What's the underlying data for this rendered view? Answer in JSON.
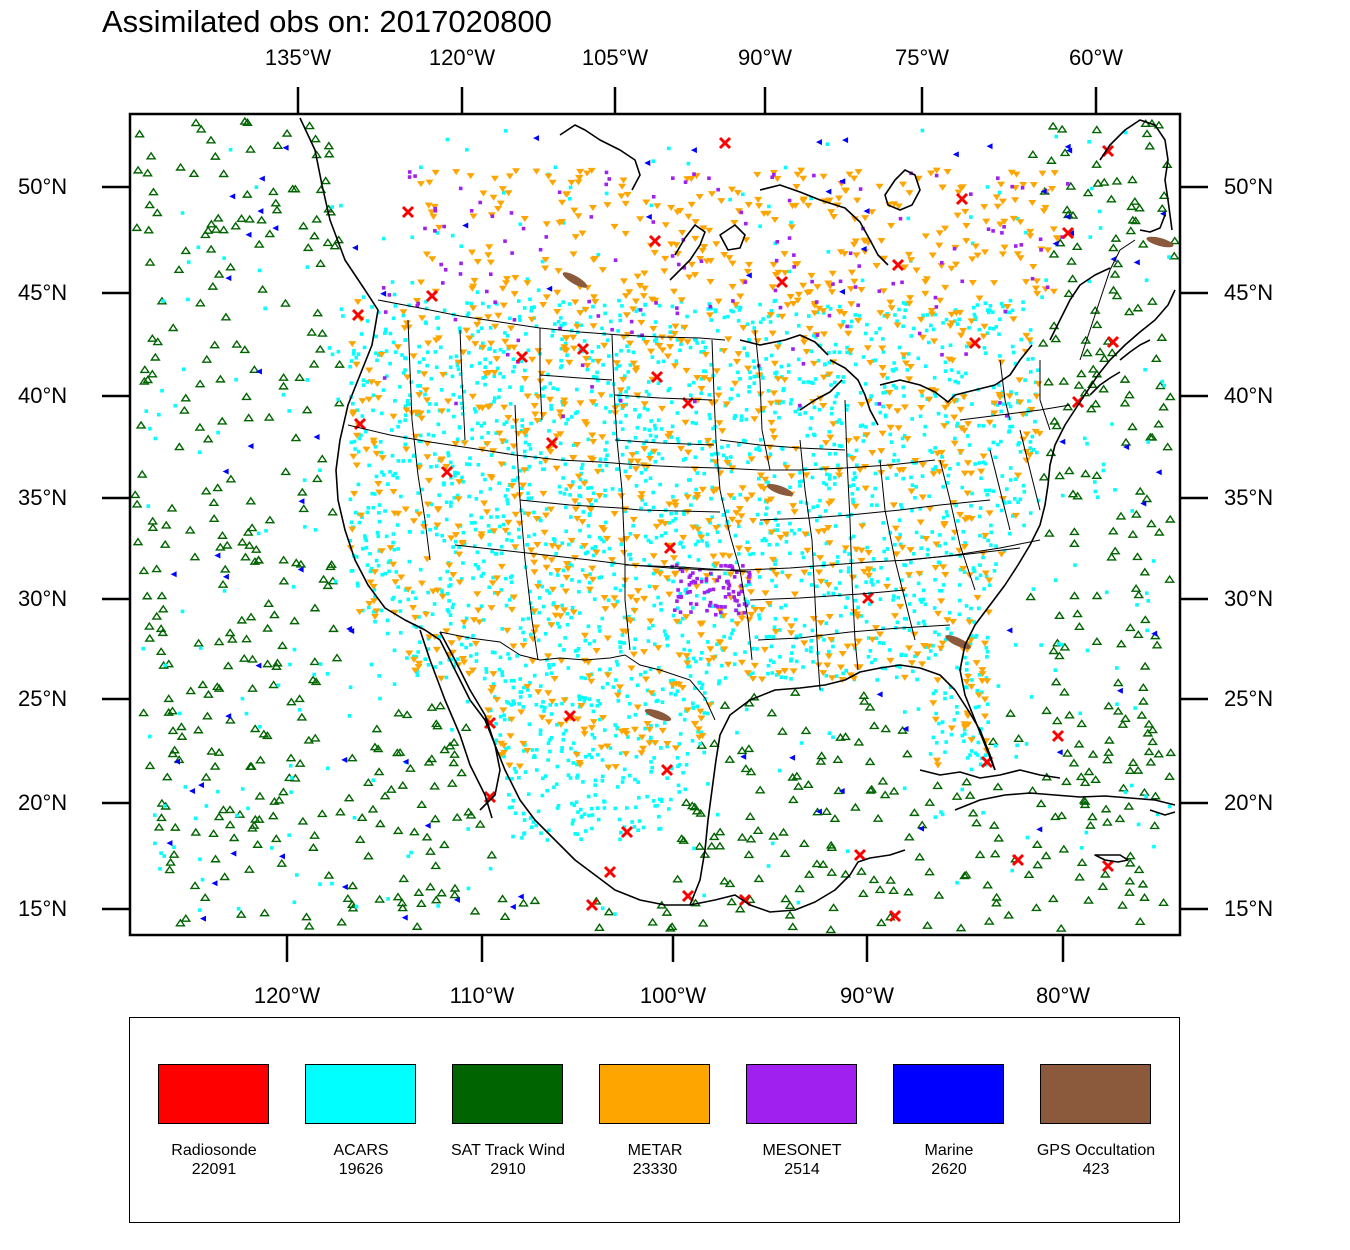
{
  "title": "Assimilated obs on: 2017020800",
  "axes": {
    "top_lon_labels": [
      "135°W",
      "120°W",
      "105°W",
      "90°W",
      "75°W",
      "60°W"
    ],
    "bottom_lon_labels": [
      "120°W",
      "110°W",
      "100°W",
      "90°W",
      "80°W"
    ],
    "lat_labels": [
      "50°N",
      "45°N",
      "40°N",
      "35°N",
      "30°N",
      "25°N",
      "20°N",
      "15°N"
    ]
  },
  "legend": [
    {
      "name": "Radiosonde",
      "count": "22091",
      "color": "#ff0000"
    },
    {
      "name": "ACARS",
      "count": "19626",
      "color": "#00ffff"
    },
    {
      "name": "SAT Track Wind",
      "count": "2910",
      "color": "#006400"
    },
    {
      "name": "METAR",
      "count": "23330",
      "color": "#ffa500"
    },
    {
      "name": "MESONET",
      "count": "2514",
      "color": "#a020f0"
    },
    {
      "name": "Marine",
      "count": "2620",
      "color": "#0000ff"
    },
    {
      "name": "GPS Occultation",
      "count": "423",
      "color": "#8b5a3c"
    }
  ]
}
